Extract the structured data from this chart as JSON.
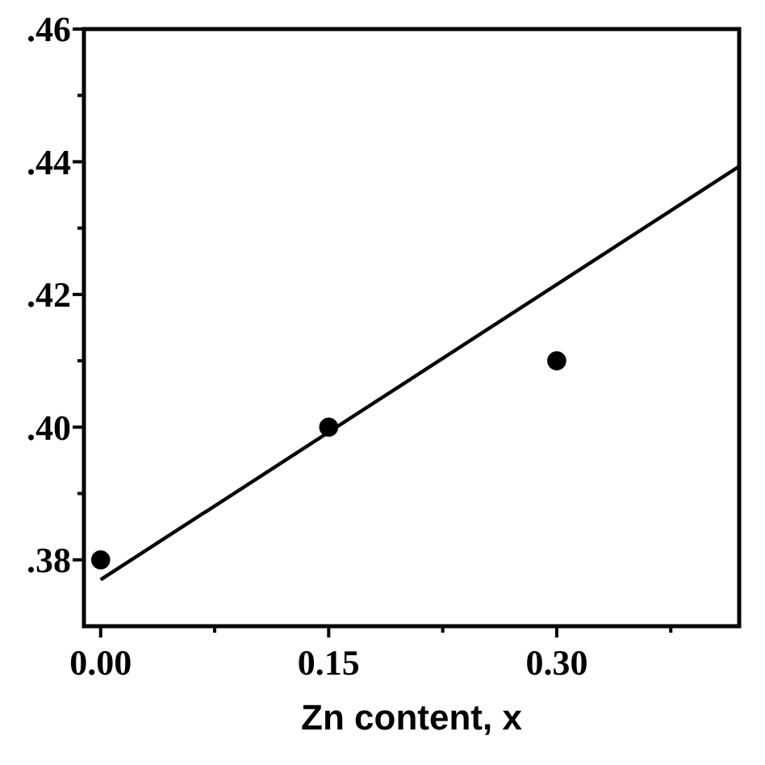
{
  "chart_data": {
    "type": "scatter",
    "xlabel": "Zn content, x",
    "series": [
      {
        "x": [
          0,
          0.15,
          0.3
        ],
        "values": [
          0.38,
          0.4,
          0.41
        ],
        "color": "#000000",
        "marker": "circle"
      },
      {
        "type": "line",
        "x": [
          0,
          0.42
        ],
        "values": [
          0.377,
          0.4393
        ],
        "color": "#000000"
      }
    ],
    "xlim": [
      -0.011,
      0.42
    ],
    "ylim": [
      0.37,
      0.46
    ],
    "xticks": [
      {
        "value": 0,
        "label": "0.00"
      },
      {
        "value": 0.075,
        "label": null
      },
      {
        "value": 0.15,
        "label": "0.15"
      },
      {
        "value": 0.225,
        "label": null
      },
      {
        "value": 0.3,
        "label": "0.30"
      },
      {
        "value": 0.375,
        "label": null
      }
    ],
    "yticks": [
      {
        "value": 0.38,
        "label": ".38"
      },
      {
        "value": 0.39,
        "label": null
      },
      {
        "value": 0.4,
        "label": ".40"
      },
      {
        "value": 0.41,
        "label": null
      },
      {
        "value": 0.42,
        "label": ".42"
      },
      {
        "value": 0.43,
        "label": null
      },
      {
        "value": 0.44,
        "label": ".44"
      },
      {
        "value": 0.45,
        "label": null
      },
      {
        "value": 0.46,
        "label": ".46"
      }
    ],
    "grid": false
  }
}
